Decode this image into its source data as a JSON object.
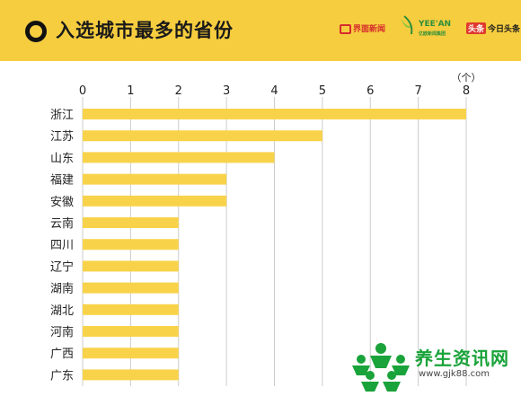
{
  "header": {
    "title": "入选城市最多的省份",
    "logos": {
      "jiemian": "界面新闻",
      "yeean": "YEE'AN",
      "yeean_sub": "亿欧新闻集团",
      "toutiao_badge": "头条",
      "toutiao": "今日头条"
    }
  },
  "watermark": {
    "text": "养生资讯网",
    "url": "www.gjk88.com"
  },
  "colors": {
    "header_bg": "#f6cd3f",
    "bar": "#f8d34a",
    "grid": "#cccccc",
    "axis_text": "#222222"
  },
  "chart_data": {
    "type": "bar",
    "orientation": "horizontal",
    "unit": "（个）",
    "categories": [
      "浙江",
      "江苏",
      "山东",
      "福建",
      "安徽",
      "云南",
      "四川",
      "辽宁",
      "湖南",
      "湖北",
      "河南",
      "广西",
      "广东"
    ],
    "values": [
      8,
      5,
      4,
      3,
      3,
      2,
      2,
      2,
      2,
      2,
      2,
      2,
      2
    ],
    "xlim": [
      0,
      8
    ],
    "ticks": [
      0,
      1,
      2,
      3,
      4,
      5,
      6,
      7,
      8
    ],
    "grid": true,
    "title": "入选城市最多的省份"
  }
}
